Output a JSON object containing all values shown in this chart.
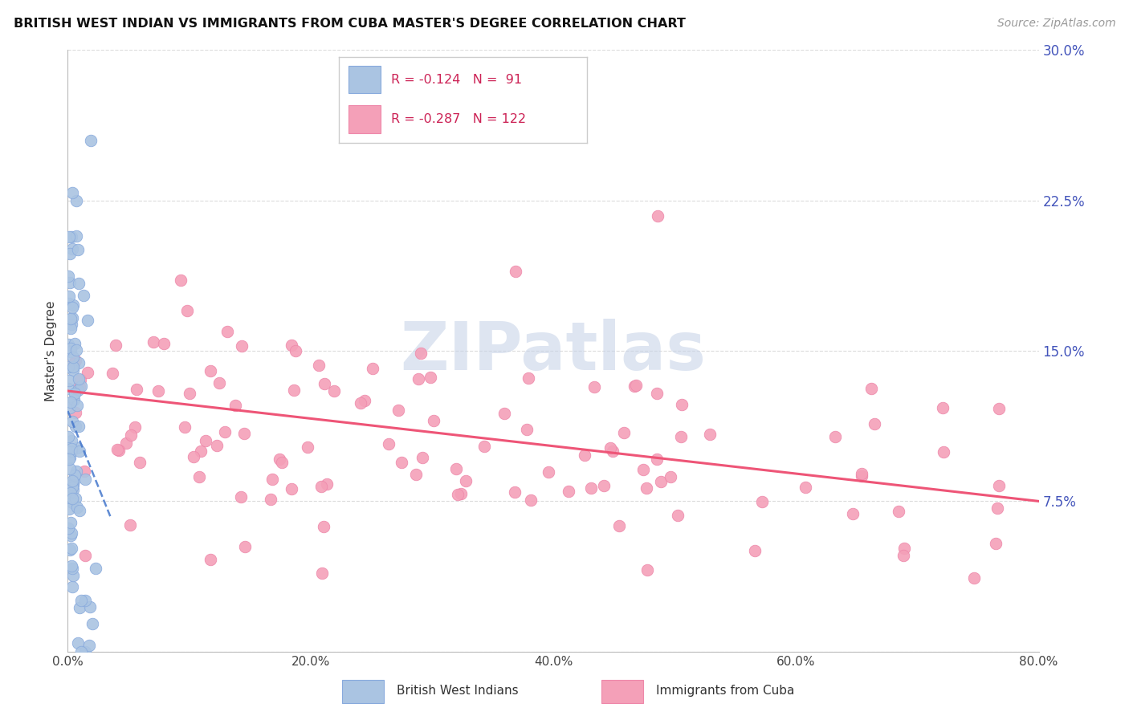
{
  "title": "BRITISH WEST INDIAN VS IMMIGRANTS FROM CUBA MASTER'S DEGREE CORRELATION CHART",
  "source": "Source: ZipAtlas.com",
  "ylabel": "Master's Degree",
  "xlabel_vals": [
    0.0,
    20.0,
    40.0,
    60.0,
    80.0
  ],
  "ylabel_vals": [
    0.0,
    7.5,
    15.0,
    22.5,
    30.0
  ],
  "xmin": 0.0,
  "xmax": 80.0,
  "ymin": 0.0,
  "ymax": 30.0,
  "blue_R": -0.124,
  "blue_N": 91,
  "pink_R": -0.287,
  "pink_N": 122,
  "blue_color": "#aac4e2",
  "pink_color": "#f4a0b8",
  "blue_line_color": "#4477cc",
  "pink_line_color": "#ee5577",
  "blue_marker_edge": "#88aadd",
  "pink_marker_edge": "#ee88aa",
  "legend_blue_label": "British West Indians",
  "legend_pink_label": "Immigrants from Cuba",
  "watermark": "ZIPatlas",
  "watermark_color": "#c8d4e8",
  "grid_color": "#cccccc",
  "right_axis_color": "#4455bb",
  "title_color": "#111111",
  "source_color": "#999999",
  "legend_text_color": "#cc2255"
}
